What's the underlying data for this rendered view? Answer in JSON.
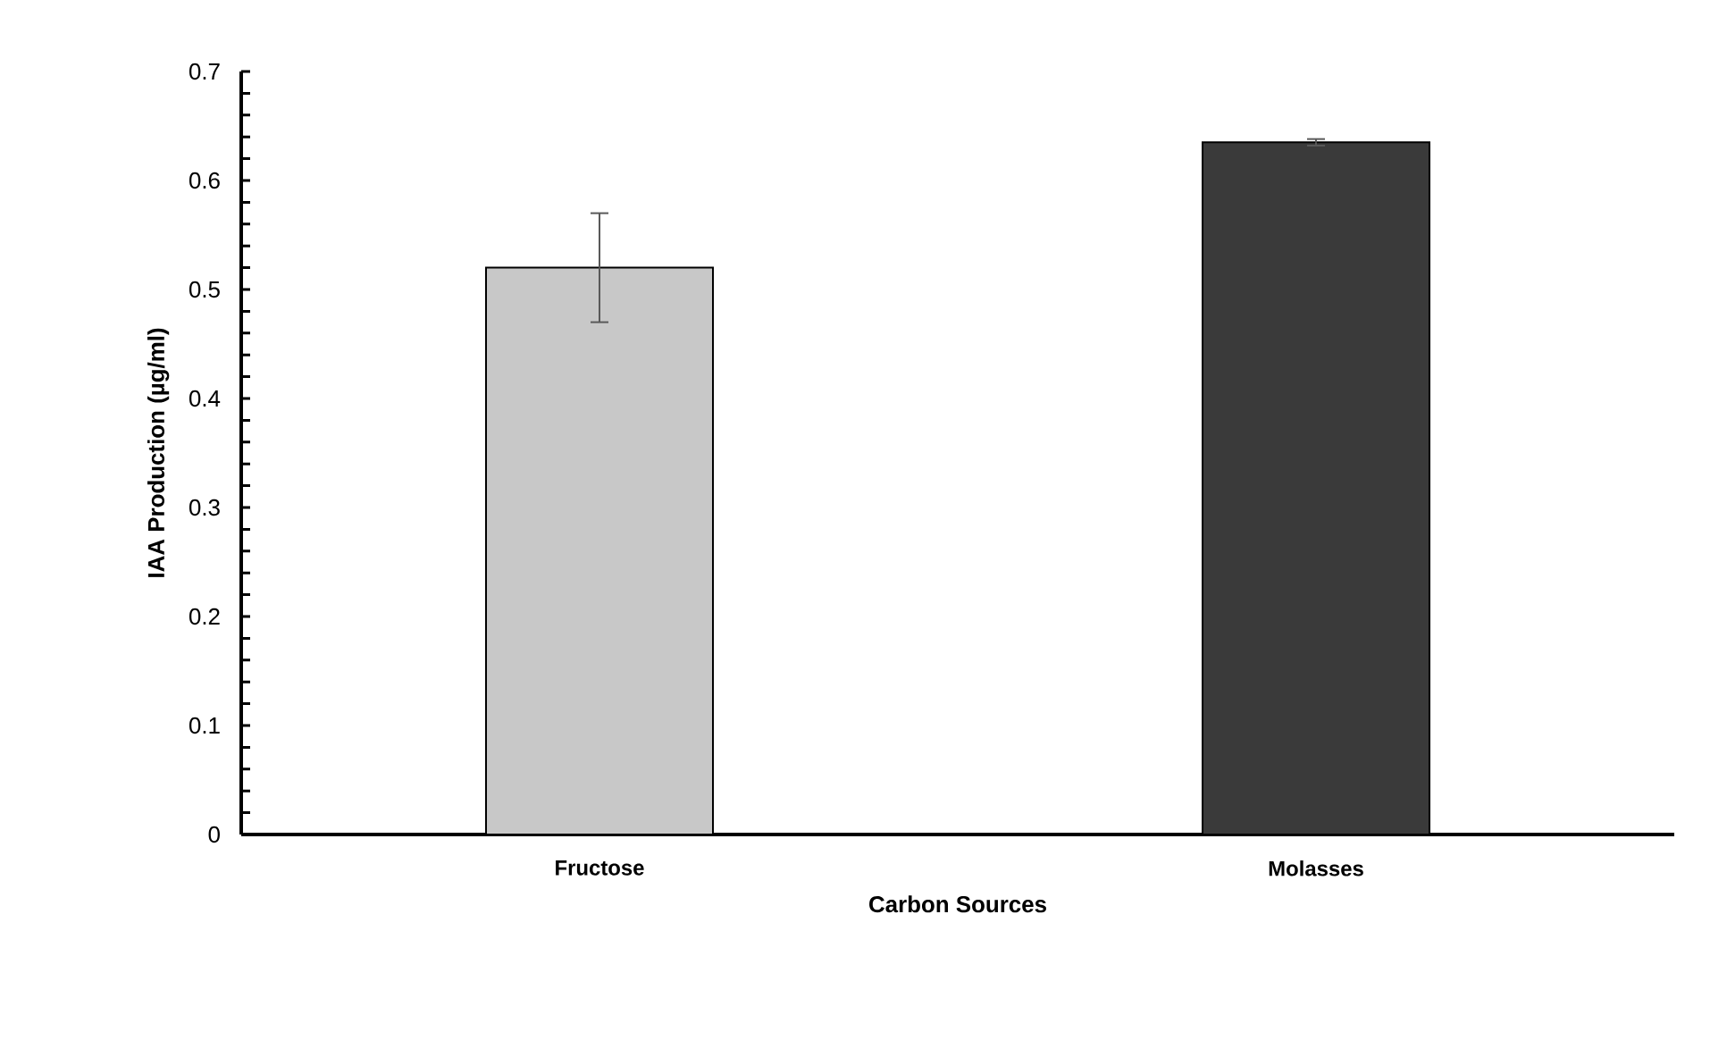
{
  "chart_data": {
    "type": "bar",
    "xlabel": "Carbon Sources",
    "ylabel": "IAA Production (µg/ml)",
    "categories": [
      "Fructose",
      "Molasses"
    ],
    "values": [
      0.52,
      0.635
    ],
    "errors": [
      0.05,
      0.003
    ],
    "colors": [
      "#c8c8c8",
      "#3a3a3a"
    ],
    "ylim": [
      0,
      0.7
    ],
    "yticks": [
      0,
      0.1,
      0.2,
      0.3,
      0.4,
      0.5,
      0.6,
      0.7
    ]
  }
}
